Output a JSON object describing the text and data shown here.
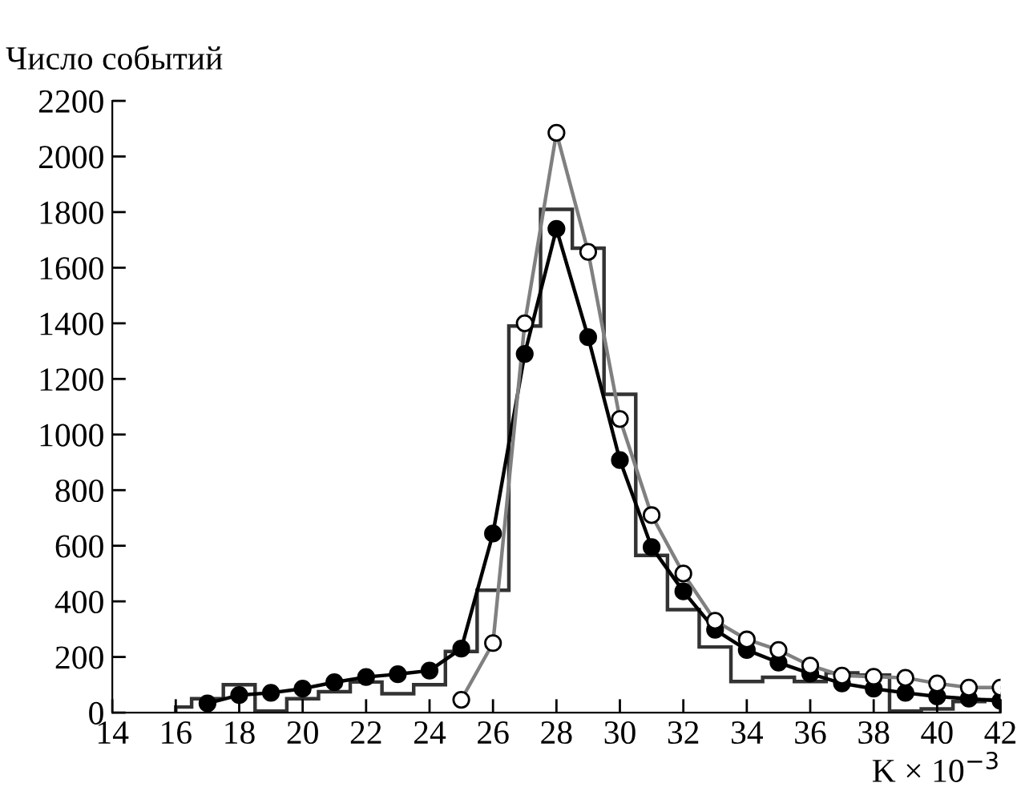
{
  "chart_data": {
    "type": "line",
    "ylabel": "Число событий",
    "xlabel": "K × 10$^{−3}$",
    "xlim": [
      14,
      42
    ],
    "ylim": [
      0,
      2200
    ],
    "xticks": [
      14,
      16,
      18,
      20,
      22,
      24,
      26,
      28,
      30,
      32,
      34,
      36,
      38,
      40,
      42
    ],
    "yticks": [
      0,
      200,
      400,
      600,
      800,
      1000,
      1200,
      1400,
      1600,
      1800,
      2000,
      2200
    ],
    "grid": false,
    "legend": false,
    "series": [
      {
        "type": "histogram",
        "color": "#333333",
        "bins": [
          16,
          16.5,
          17.5,
          18.5,
          19.5,
          20.5,
          21.5,
          22.5,
          23.5,
          24.5,
          25.5,
          26.5,
          27.5,
          28.5,
          29.5,
          30.5,
          31.5,
          32.5,
          33.5,
          34.5,
          35.5,
          36.5,
          37.5,
          38.5,
          39.5,
          40.5,
          41.5,
          42
        ],
        "values": [
          20,
          50,
          100,
          5,
          50,
          75,
          110,
          68,
          100,
          220,
          440,
          1390,
          1810,
          1670,
          1145,
          565,
          370,
          236,
          112,
          127,
          112,
          143,
          135,
          5,
          13,
          40,
          46
        ]
      },
      {
        "color": "#000000",
        "marker": "circle",
        "x": [
          17,
          18,
          19,
          20,
          21,
          22,
          23,
          24,
          25,
          26,
          27,
          28,
          29,
          30,
          31,
          32,
          33,
          34,
          35,
          36,
          37,
          38,
          39,
          40,
          41,
          42
        ],
        "values": [
          33,
          63,
          71,
          86,
          109,
          128,
          138,
          151,
          230,
          644,
          1290,
          1740,
          1350,
          908,
          595,
          436,
          298,
          225,
          180,
          140,
          105,
          86,
          71,
          58,
          50,
          42
        ]
      },
      {
        "color": "#808080",
        "marker": "circle",
        "x": [
          25,
          26,
          27,
          28,
          29,
          30,
          31,
          32,
          33,
          34,
          35,
          36,
          37,
          38,
          39,
          40,
          41,
          42
        ],
        "values": [
          46,
          250,
          1400,
          2085,
          1657,
          1056,
          710,
          500,
          330,
          263,
          225,
          169,
          133,
          129,
          125,
          105,
          90,
          90
        ]
      }
    ]
  }
}
